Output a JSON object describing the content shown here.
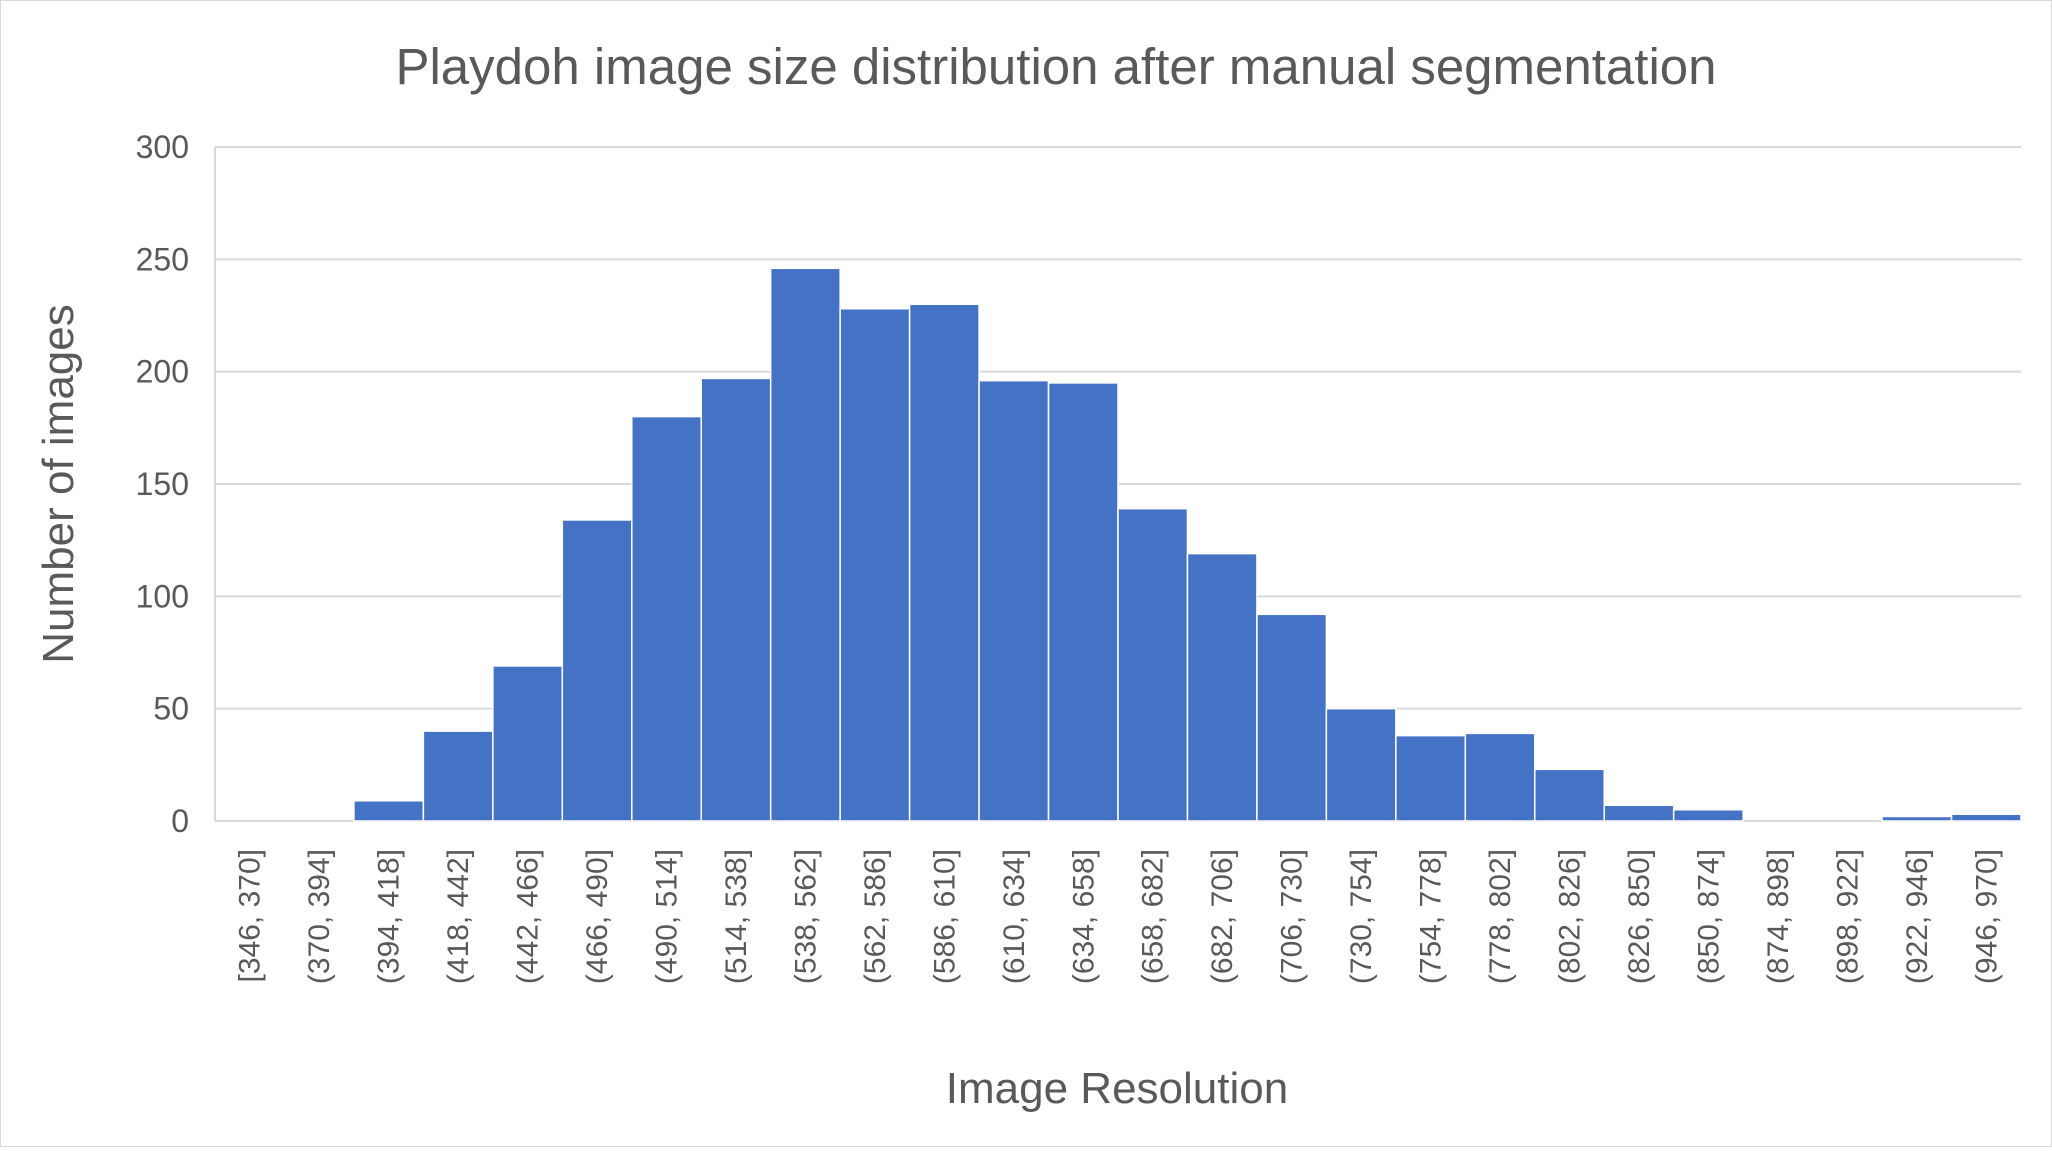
{
  "chart_data": {
    "type": "bar",
    "title": "Playdoh image size distribution after manual segmentation",
    "xlabel": "Image Resolution",
    "ylabel": "Number of images",
    "ylim": [
      0,
      300
    ],
    "yticks": [
      0,
      50,
      100,
      150,
      200,
      250,
      300
    ],
    "grid": true,
    "legend": "none",
    "bar_color": "#4472c4",
    "categories": [
      "[346, 370]",
      "(370, 394]",
      "(394, 418]",
      "(418, 442]",
      "(442, 466]",
      "(466, 490]",
      "(490, 514]",
      "(514, 538]",
      "(538, 562]",
      "(562, 586]",
      "(586, 610]",
      "(610, 634]",
      "(634, 658]",
      "(658, 682]",
      "(682, 706]",
      "(706, 730]",
      "(730, 754]",
      "(754, 778]",
      "(778, 802]",
      "(802, 826]",
      "(826, 850]",
      "(850, 874]",
      "(874, 898]",
      "(898, 922]",
      "(922, 946]",
      "(946, 970]"
    ],
    "values": [
      0,
      0,
      9,
      40,
      69,
      134,
      180,
      197,
      246,
      228,
      230,
      196,
      195,
      139,
      119,
      92,
      50,
      38,
      39,
      23,
      7,
      5,
      0,
      0,
      2,
      3
    ]
  }
}
